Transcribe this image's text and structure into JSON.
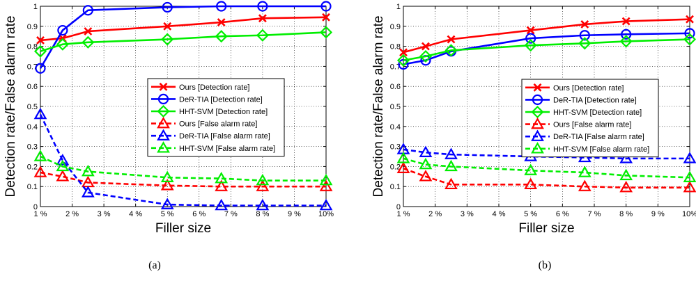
{
  "chart_data": [
    {
      "type": "line",
      "caption": "(a)",
      "title": "",
      "xlabel": "Filler size",
      "ylabel": "Detection rate/False alarm rate",
      "x": [
        1,
        1.7,
        2.5,
        5,
        6.7,
        8,
        10
      ],
      "xlim": [
        1,
        10
      ],
      "ylim": [
        0,
        1
      ],
      "xticks": [
        1,
        2,
        3,
        4,
        5,
        6,
        7,
        8,
        9,
        10
      ],
      "xtick_labels": [
        "1 %",
        "2 %",
        "3 %",
        "4 %",
        "5 %",
        "6 %",
        "7 %",
        "8 %",
        "9 %",
        "10%"
      ],
      "yticks": [
        0,
        0.1,
        0.2,
        0.3,
        0.4,
        0.5,
        0.6,
        0.7,
        0.8,
        0.9,
        1
      ],
      "ytick_labels": [
        "0",
        "0.1",
        "0.2",
        "0.3",
        "0.4",
        "0.5",
        "0.6",
        "0.7",
        "0.8",
        "0.9",
        "1"
      ],
      "grid": true,
      "legend_position": "center-right",
      "series": [
        {
          "name": "Ours [Detection rate]",
          "color": "#ff0000",
          "marker": "x",
          "dash": "solid",
          "values": [
            0.83,
            0.84,
            0.875,
            0.9,
            0.92,
            0.94,
            0.945
          ]
        },
        {
          "name": "DeR-TIA [Detection rate]",
          "color": "#0000ff",
          "marker": "circle",
          "dash": "solid",
          "values": [
            0.69,
            0.88,
            0.98,
            0.995,
            1.0,
            1.0,
            1.0
          ]
        },
        {
          "name": "HHT-SVM [Detection rate]",
          "color": "#00ee00",
          "marker": "diamond",
          "dash": "solid",
          "values": [
            0.775,
            0.81,
            0.82,
            0.835,
            0.85,
            0.855,
            0.87
          ]
        },
        {
          "name": "Ours [False alarm rate]",
          "color": "#ff0000",
          "marker": "triangle",
          "dash": "dashed",
          "values": [
            0.17,
            0.15,
            0.12,
            0.105,
            0.1,
            0.1,
            0.1
          ]
        },
        {
          "name": "DeR-TIA [False alarm rate]",
          "color": "#0000ff",
          "marker": "triangle",
          "dash": "dashed",
          "values": [
            0.46,
            0.23,
            0.07,
            0.01,
            0.005,
            0.005,
            0.005
          ]
        },
        {
          "name": "HHT-SVM [False alarm rate]",
          "color": "#00ee00",
          "marker": "triangle",
          "dash": "dashed",
          "values": [
            0.25,
            0.2,
            0.175,
            0.145,
            0.14,
            0.13,
            0.13
          ]
        }
      ]
    },
    {
      "type": "line",
      "caption": "(b)",
      "title": "",
      "xlabel": "Filler size",
      "ylabel": "Detection rate/False alarm rate",
      "x": [
        1,
        1.7,
        2.5,
        5,
        6.7,
        8,
        10
      ],
      "xlim": [
        1,
        10
      ],
      "ylim": [
        0,
        1
      ],
      "xticks": [
        1,
        2,
        3,
        4,
        5,
        6,
        7,
        8,
        9,
        10
      ],
      "xtick_labels": [
        "1 %",
        "2 %",
        "3 %",
        "4 %",
        "5 %",
        "6 %",
        "7 %",
        "8 %",
        "9 %",
        "10%"
      ],
      "yticks": [
        0,
        0.1,
        0.2,
        0.3,
        0.4,
        0.5,
        0.6,
        0.7,
        0.8,
        0.9,
        1
      ],
      "ytick_labels": [
        "0",
        "0.1",
        "0.2",
        "0.3",
        "0.4",
        "0.5",
        "0.6",
        "0.7",
        "0.8",
        "0.9",
        "1"
      ],
      "grid": true,
      "legend_position": "center-right",
      "series": [
        {
          "name": "Ours [Detection rate]",
          "color": "#ff0000",
          "marker": "x",
          "dash": "solid",
          "values": [
            0.77,
            0.8,
            0.835,
            0.88,
            0.91,
            0.925,
            0.935
          ]
        },
        {
          "name": "DeR-TIA [Detection rate]",
          "color": "#0000ff",
          "marker": "circle",
          "dash": "solid",
          "values": [
            0.71,
            0.73,
            0.775,
            0.84,
            0.855,
            0.86,
            0.865
          ]
        },
        {
          "name": "HHT-SVM [Detection rate]",
          "color": "#00ee00",
          "marker": "diamond",
          "dash": "solid",
          "values": [
            0.73,
            0.75,
            0.78,
            0.805,
            0.815,
            0.825,
            0.835
          ]
        },
        {
          "name": "Ours [False alarm rate]",
          "color": "#ff0000",
          "marker": "triangle",
          "dash": "dashed",
          "values": [
            0.19,
            0.15,
            0.11,
            0.11,
            0.1,
            0.095,
            0.095
          ]
        },
        {
          "name": "DeR-TIA [False alarm rate]",
          "color": "#0000ff",
          "marker": "triangle",
          "dash": "dashed",
          "values": [
            0.285,
            0.27,
            0.26,
            0.25,
            0.245,
            0.24,
            0.24
          ]
        },
        {
          "name": "HHT-SVM [False alarm rate]",
          "color": "#00ee00",
          "marker": "triangle",
          "dash": "dashed",
          "values": [
            0.24,
            0.21,
            0.2,
            0.18,
            0.17,
            0.155,
            0.145
          ]
        }
      ]
    }
  ]
}
